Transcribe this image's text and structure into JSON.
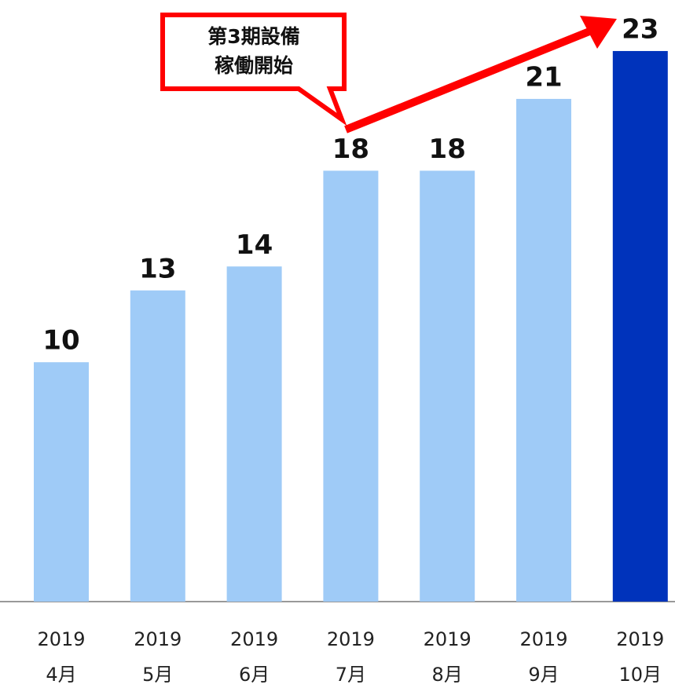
{
  "chart_data": {
    "type": "bar",
    "categories": [
      [
        "2019",
        "4月"
      ],
      [
        "2019",
        "5月"
      ],
      [
        "2019",
        "6月"
      ],
      [
        "2019",
        "7月"
      ],
      [
        "2019",
        "8月"
      ],
      [
        "2019",
        "9月"
      ],
      [
        "2019",
        "10月"
      ]
    ],
    "values": [
      10,
      13,
      14,
      18,
      18,
      21,
      23
    ],
    "colors": [
      "#9fcbf7",
      "#9fcbf7",
      "#9fcbf7",
      "#9fcbf7",
      "#9fcbf7",
      "#9fcbf7",
      "#0033bb"
    ],
    "ylim": [
      0,
      25
    ],
    "annotation": [
      "第3期設備",
      "稼働開始"
    ],
    "annotation_color": "#ff0000"
  }
}
